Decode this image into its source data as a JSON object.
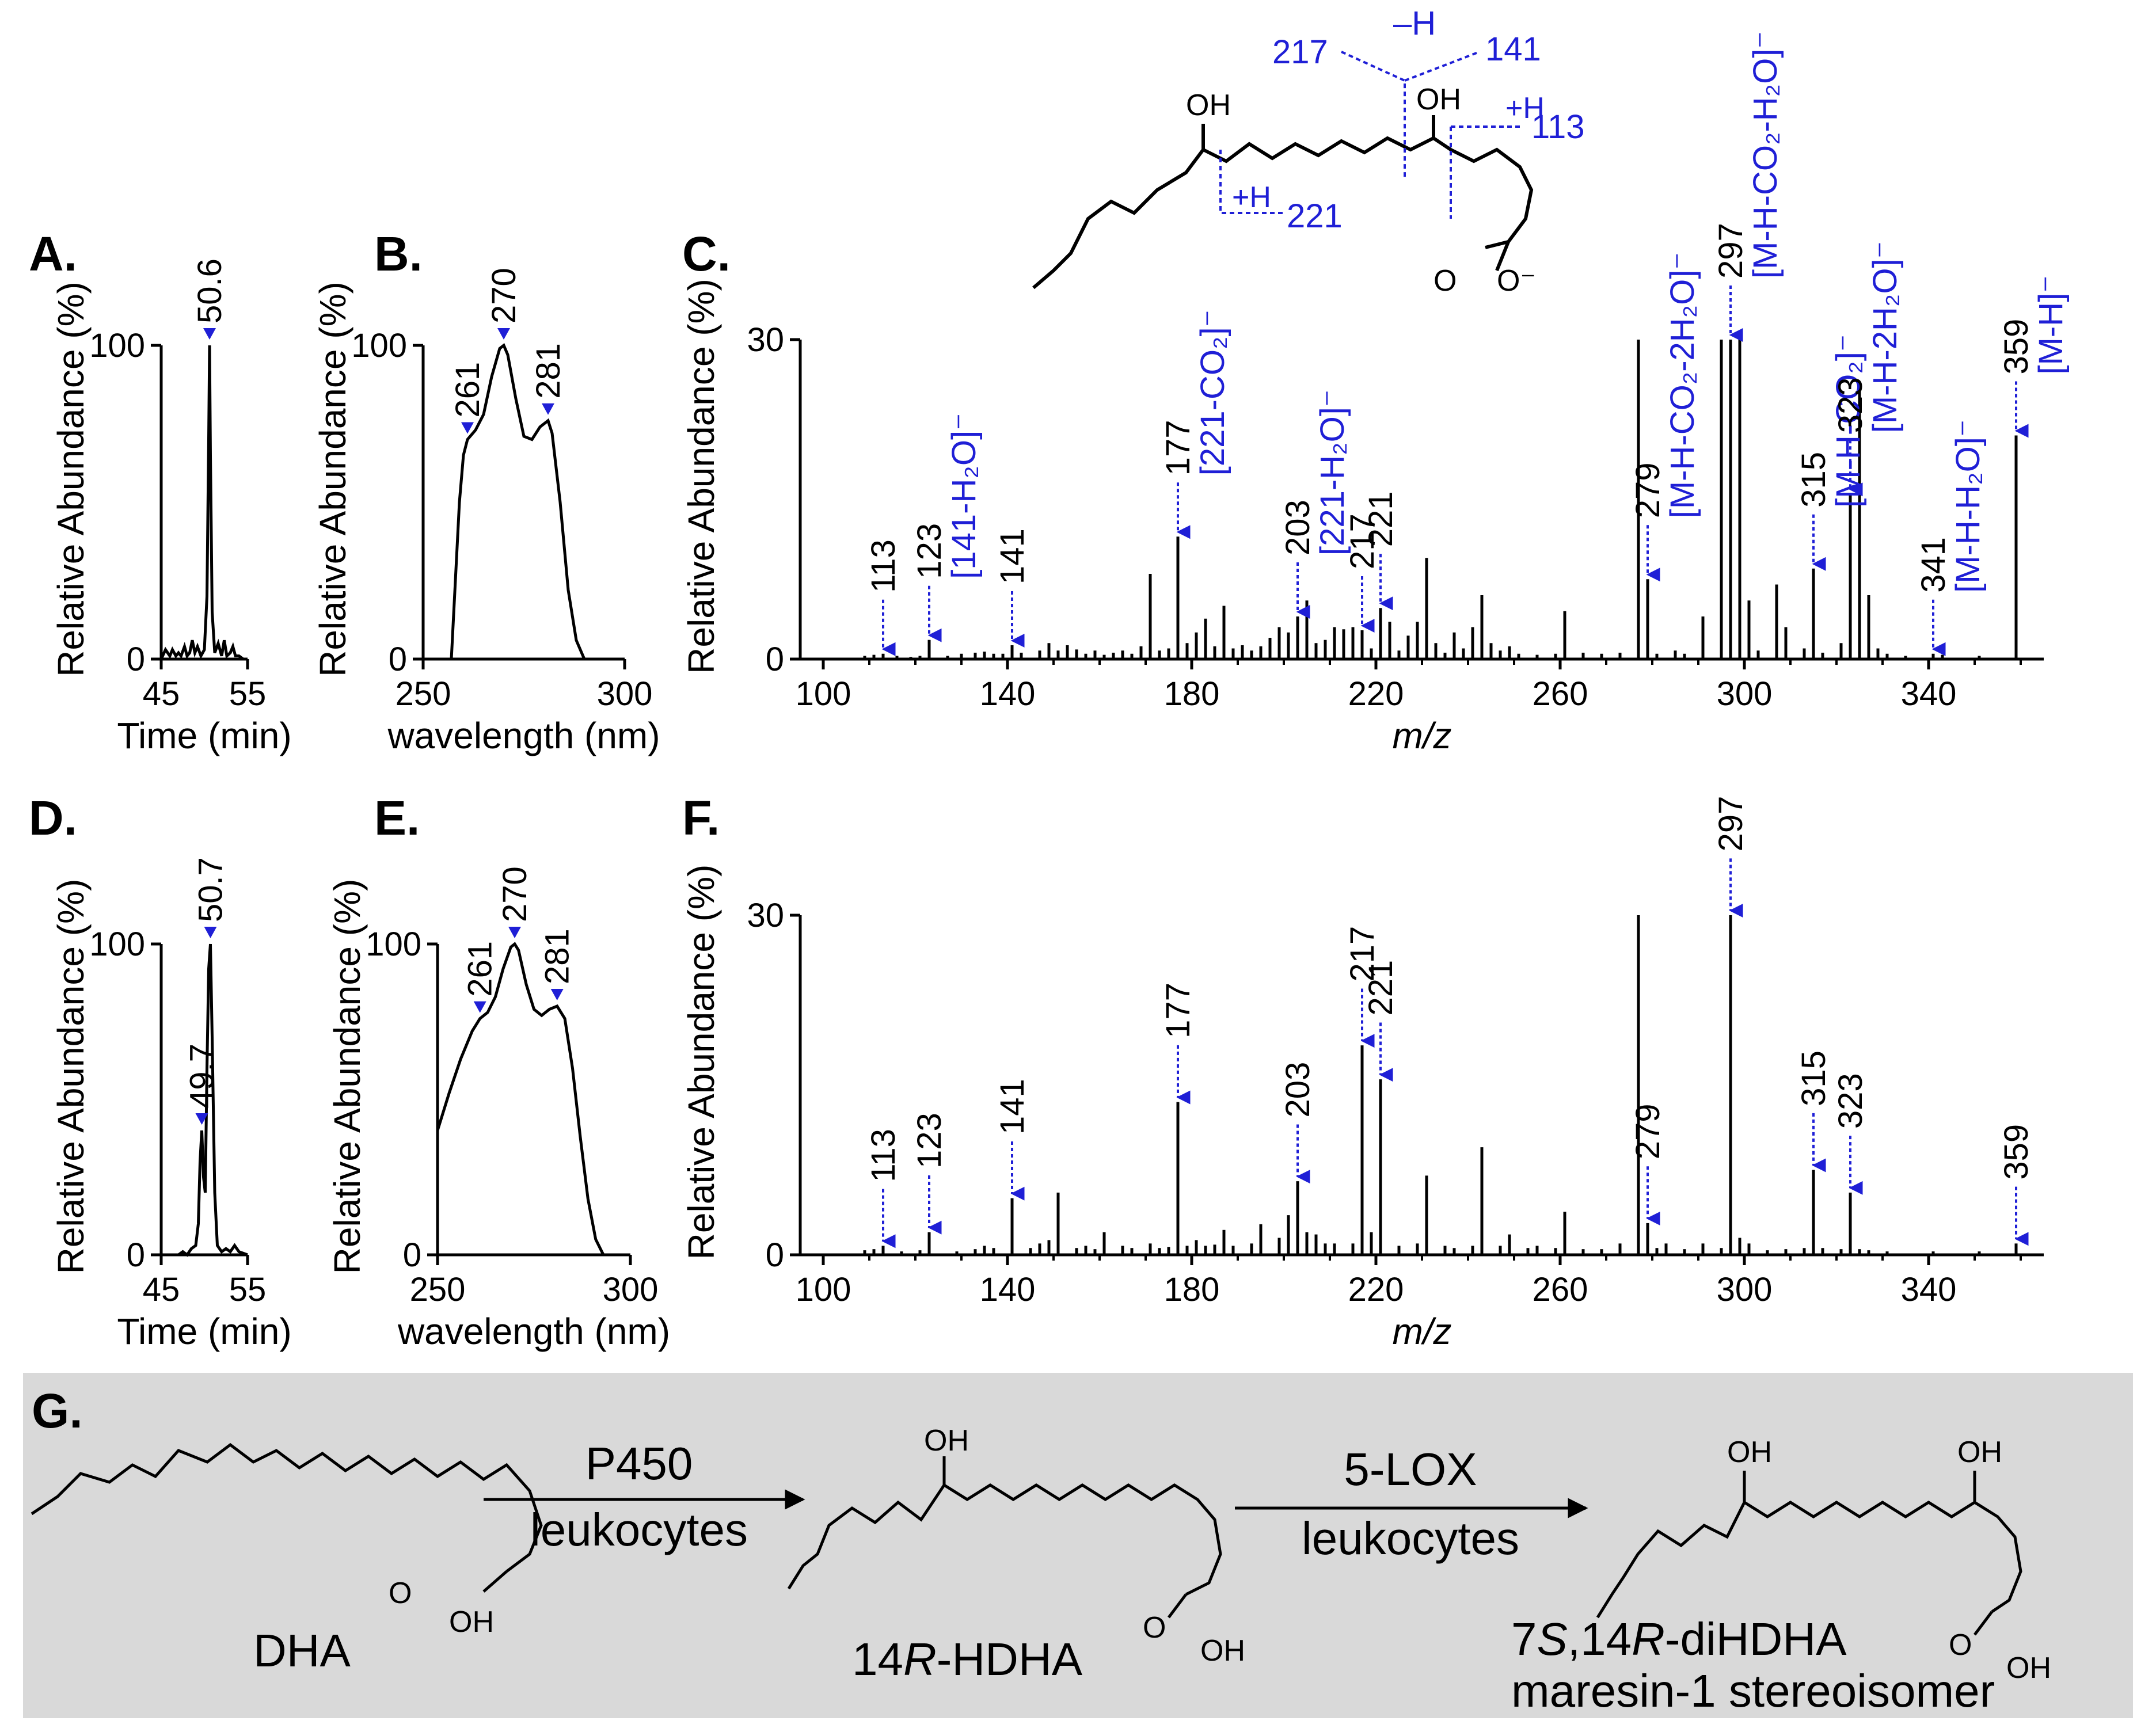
{
  "panels": {
    "A": "A.",
    "B": "B.",
    "C": "C.",
    "D": "D.",
    "E": "E.",
    "F": "F.",
    "G": "G."
  },
  "axes": {
    "rel_abundance": "Relative Abundance (%)",
    "time": "Time (min)",
    "wavelength": "wavelength (nm)",
    "mz": "m/z"
  },
  "chart_data": [
    {
      "id": "A",
      "type": "line",
      "xlabel": "Time (min)",
      "ylabel": "Relative Abundance (%)",
      "xlim": [
        45,
        55
      ],
      "ylim": [
        0,
        100
      ],
      "xticks": [
        45,
        55
      ],
      "yticks": [
        0,
        100
      ],
      "peaks": [
        {
          "x": 50.6,
          "y": 100,
          "label": "50.6"
        }
      ],
      "x": [
        45,
        45.5,
        46,
        46.3,
        46.7,
        47,
        47.3,
        47.7,
        48,
        48.3,
        48.6,
        48.9,
        49.2,
        49.6,
        50,
        50.3,
        50.5,
        50.6,
        50.7,
        50.9,
        51.2,
        51.6,
        52,
        52.3,
        52.6,
        53,
        53.3,
        53.6,
        54,
        54.5,
        55
      ],
      "y": [
        0,
        3,
        1,
        3,
        1,
        2,
        1,
        4,
        1,
        2,
        6,
        2,
        4,
        1,
        3,
        20,
        70,
        100,
        65,
        15,
        2,
        5,
        1,
        6,
        1,
        2,
        4,
        1,
        1,
        0,
        0
      ]
    },
    {
      "id": "B",
      "type": "line",
      "xlabel": "wavelength (nm)",
      "ylabel": "Relative Abundance (%)",
      "xlim": [
        250,
        300
      ],
      "ylim": [
        0,
        100
      ],
      "xticks": [
        250,
        300
      ],
      "yticks": [
        0,
        100
      ],
      "peaks": [
        {
          "x": 261,
          "y": 70,
          "label": "261"
        },
        {
          "x": 270,
          "y": 100,
          "label": "270"
        },
        {
          "x": 281,
          "y": 76,
          "label": "281"
        }
      ],
      "x": [
        257,
        258,
        259,
        260,
        261,
        263,
        265,
        267,
        269,
        270,
        271,
        273,
        275,
        277,
        279,
        281,
        282,
        284,
        286,
        288,
        290
      ],
      "y": [
        0,
        25,
        50,
        65,
        70,
        73,
        78,
        90,
        99,
        100,
        97,
        83,
        71,
        70,
        74,
        76,
        72,
        50,
        22,
        6,
        0
      ]
    },
    {
      "id": "C",
      "type": "bar",
      "xlabel": "m/z",
      "ylabel": "Relative Abundance (%)",
      "xlim": [
        95,
        365
      ],
      "ylim": [
        0,
        30
      ],
      "xticks": [
        100,
        140,
        180,
        220,
        260,
        300,
        340
      ],
      "yticks": [
        0,
        30
      ],
      "x": [
        109,
        111,
        113,
        116,
        119,
        121,
        123,
        127,
        130,
        133,
        135,
        137,
        139,
        141,
        143,
        147,
        149,
        151,
        153,
        155,
        157,
        159,
        161,
        163,
        165,
        167,
        169,
        171,
        173,
        175,
        177,
        179,
        181,
        183,
        185,
        187,
        189,
        191,
        193,
        195,
        197,
        199,
        201,
        203,
        205,
        207,
        209,
        211,
        213,
        215,
        217,
        219,
        221,
        223,
        225,
        227,
        229,
        231,
        233,
        235,
        237,
        239,
        241,
        243,
        245,
        247,
        249,
        251,
        255,
        259,
        261,
        265,
        269,
        273,
        277,
        279,
        281,
        285,
        287,
        291,
        295,
        297,
        299,
        301,
        303,
        307,
        309,
        313,
        315,
        317,
        321,
        323,
        325,
        327,
        329,
        331,
        335,
        341,
        343,
        351,
        359
      ],
      "values": [
        0.3,
        0.4,
        0.5,
        0.3,
        0.2,
        0.3,
        1.8,
        0.3,
        0.5,
        0.6,
        0.7,
        0.5,
        0.5,
        1.3,
        0.6,
        0.8,
        1.5,
        0.8,
        1.3,
        0.9,
        0.5,
        0.8,
        0.4,
        0.6,
        0.8,
        0.5,
        1.2,
        8.0,
        0.8,
        1.0,
        11.5,
        1.5,
        2.5,
        3.8,
        1.2,
        5.0,
        1.0,
        1.3,
        0.8,
        1.2,
        2.0,
        3.0,
        2.5,
        4.0,
        5.5,
        1.5,
        1.8,
        3.0,
        2.8,
        3.0,
        2.7,
        1.0,
        4.8,
        3.5,
        0.8,
        2.2,
        3.5,
        9.5,
        1.5,
        0.6,
        2.5,
        1.0,
        3.0,
        6.0,
        1.5,
        0.8,
        1.2,
        0.5,
        0.4,
        0.5,
        4.5,
        0.6,
        0.5,
        0.6,
        30.0,
        7.5,
        0.5,
        0.8,
        0.5,
        4.0,
        30.0,
        30.0,
        30.0,
        5.5,
        0.8,
        7.0,
        3.0,
        1.0,
        8.5,
        0.6,
        1.5,
        15.5,
        25.5,
        6.0,
        1.0,
        0.5,
        0.3,
        0.5,
        0.4,
        0.3,
        21.0
      ],
      "annotations": [
        {
          "x": 113,
          "label": "113",
          "color": "black"
        },
        {
          "x": 123,
          "label": "123",
          "color": "black",
          "sub": "[141-H₂O]⁻"
        },
        {
          "x": 141,
          "label": "141",
          "color": "black"
        },
        {
          "x": 177,
          "label": "177",
          "color": "black",
          "sub": "[221-CO₂]⁻"
        },
        {
          "x": 203,
          "label": "203",
          "color": "black",
          "sub": "[221-H₂O]⁻"
        },
        {
          "x": 217,
          "label": "217",
          "color": "black"
        },
        {
          "x": 221,
          "label": "221",
          "color": "black"
        },
        {
          "x": 279,
          "label": "279",
          "color": "black",
          "sub": "[M-H-CO₂-2H₂O]⁻"
        },
        {
          "x": 297,
          "label": "297",
          "color": "black",
          "sub": "[M-H-CO₂-H₂O]⁻"
        },
        {
          "x": 315,
          "label": "315",
          "color": "black",
          "sub": "[M-H-CO₂]⁻"
        },
        {
          "x": 323,
          "label": "323",
          "color": "black",
          "sub": "[M-H-2H₂O]⁻"
        },
        {
          "x": 341,
          "label": "341",
          "color": "black",
          "sub": "[M-H-H₂O]⁻"
        },
        {
          "x": 359,
          "label": "359",
          "color": "black",
          "sub": "[M-H]⁻"
        }
      ]
    },
    {
      "id": "D",
      "type": "line",
      "xlabel": "Time (min)",
      "ylabel": "Relative Abundance (%)",
      "xlim": [
        45,
        55
      ],
      "ylim": [
        0,
        100
      ],
      "xticks": [
        45,
        55
      ],
      "yticks": [
        0,
        100
      ],
      "peaks": [
        {
          "x": 49.7,
          "y": 40,
          "label": "49.7"
        },
        {
          "x": 50.7,
          "y": 100,
          "label": "50.7"
        }
      ],
      "x": [
        45,
        46,
        47,
        47.5,
        48,
        48.5,
        49,
        49.3,
        49.5,
        49.7,
        49.9,
        50.1,
        50.3,
        50.5,
        50.7,
        50.9,
        51.2,
        51.5,
        52,
        52.5,
        53,
        53.5,
        54,
        55
      ],
      "y": [
        0,
        0,
        0,
        1,
        0,
        2,
        3,
        10,
        30,
        40,
        25,
        20,
        60,
        92,
        100,
        70,
        20,
        3,
        1,
        2,
        1,
        3,
        1,
        0
      ]
    },
    {
      "id": "E",
      "type": "line",
      "xlabel": "wavelength (nm)",
      "ylabel": "Relative Abundance (%)",
      "xlim": [
        250,
        300
      ],
      "ylim": [
        0,
        100
      ],
      "xticks": [
        250,
        300
      ],
      "yticks": [
        0,
        100
      ],
      "peaks": [
        {
          "x": 261,
          "y": 76,
          "label": "261"
        },
        {
          "x": 270,
          "y": 100,
          "label": "270"
        },
        {
          "x": 281,
          "y": 80,
          "label": "281"
        }
      ],
      "x": [
        250,
        253,
        256,
        259,
        261,
        263,
        265,
        267,
        269,
        270,
        271,
        273,
        275,
        277,
        279,
        281,
        283,
        285,
        287,
        289,
        291,
        293
      ],
      "y": [
        40,
        52,
        63,
        72,
        76,
        78,
        83,
        92,
        99,
        100,
        98,
        87,
        79,
        77,
        79,
        80,
        76,
        60,
        38,
        18,
        5,
        0
      ]
    },
    {
      "id": "F",
      "type": "bar",
      "xlabel": "m/z",
      "ylabel": "Relative Abundance (%)",
      "xlim": [
        95,
        365
      ],
      "ylim": [
        0,
        30
      ],
      "xticks": [
        100,
        140,
        180,
        220,
        260,
        300,
        340
      ],
      "yticks": [
        0,
        30
      ],
      "x": [
        109,
        111,
        113,
        117,
        121,
        123,
        129,
        133,
        135,
        137,
        141,
        145,
        147,
        149,
        151,
        155,
        157,
        159,
        161,
        165,
        167,
        171,
        173,
        175,
        177,
        179,
        181,
        183,
        185,
        187,
        189,
        193,
        195,
        199,
        201,
        203,
        205,
        207,
        209,
        211,
        215,
        217,
        219,
        221,
        225,
        229,
        231,
        235,
        237,
        241,
        243,
        247,
        249,
        253,
        255,
        259,
        261,
        265,
        269,
        273,
        277,
        279,
        281,
        283,
        287,
        291,
        295,
        297,
        299,
        301,
        305,
        309,
        313,
        315,
        317,
        321,
        323,
        325,
        327,
        331,
        341,
        351,
        359
      ],
      "values": [
        0.4,
        0.5,
        0.8,
        0.3,
        0.4,
        2.0,
        0.3,
        0.5,
        0.8,
        0.6,
        5.0,
        0.6,
        1.0,
        1.3,
        5.5,
        0.6,
        0.8,
        0.5,
        2.0,
        0.8,
        0.6,
        1.0,
        0.6,
        0.7,
        13.5,
        0.8,
        1.3,
        0.8,
        0.9,
        2.2,
        0.8,
        1.0,
        2.7,
        1.5,
        3.5,
        6.5,
        2.0,
        1.8,
        1.0,
        1.0,
        1.0,
        18.5,
        2.0,
        15.5,
        0.8,
        1.0,
        7.0,
        0.8,
        0.6,
        0.8,
        9.5,
        0.8,
        1.8,
        0.6,
        0.8,
        0.6,
        3.8,
        0.5,
        0.5,
        1.0,
        30.0,
        2.8,
        0.6,
        1.0,
        0.5,
        1.0,
        0.6,
        30.0,
        1.5,
        1.0,
        0.4,
        0.5,
        0.6,
        7.5,
        0.6,
        0.5,
        5.5,
        0.5,
        0.4,
        0.3,
        0.3,
        0.3,
        1.0
      ],
      "annotations": [
        {
          "x": 113,
          "label": "113"
        },
        {
          "x": 123,
          "label": "123"
        },
        {
          "x": 141,
          "label": "141"
        },
        {
          "x": 177,
          "label": "177"
        },
        {
          "x": 203,
          "label": "203"
        },
        {
          "x": 217,
          "label": "217"
        },
        {
          "x": 221,
          "label": "221"
        },
        {
          "x": 279,
          "label": "279"
        },
        {
          "x": 297,
          "label": "297"
        },
        {
          "x": 315,
          "label": "315"
        },
        {
          "x": 323,
          "label": "323"
        },
        {
          "x": 359,
          "label": "359"
        }
      ]
    }
  ],
  "structure_C": {
    "oh1": "OH",
    "oh2": "OH",
    "coo": "O",
    "coo2": "O⁻",
    "frag_217": "217",
    "frag_141": "141",
    "frag_minus_h": "–H",
    "frag_plus_h_113": "+H",
    "frag_113": "113",
    "frag_plus_h_221": "+H",
    "frag_221": "221"
  },
  "scheme_G": {
    "dha_label": "DHA",
    "arrow1_top": "P450",
    "arrow1_bottom": "leukocytes",
    "hdha_label_pre": "14",
    "hdha_label_it": "R",
    "hdha_label_post": "-HDHA",
    "arrow2_top": "5-LOX",
    "arrow2_bottom": "leukocytes",
    "product_label_1a": "7",
    "product_label_1b": "S",
    "product_label_1c": ",14",
    "product_label_1d": "R",
    "product_label_1e": "-diHDHA",
    "product_label_2": "maresin-1 stereoisomer",
    "oh_hdha": "OH",
    "oh_prod_1": "OH",
    "oh_prod_2": "OH",
    "cooh_dha_o": "O",
    "cooh_dha_oh": "OH",
    "cooh_hdha_o": "O",
    "cooh_hdha_oh": "OH",
    "cooh_prod_o": "O",
    "cooh_prod_oh": "OH"
  }
}
